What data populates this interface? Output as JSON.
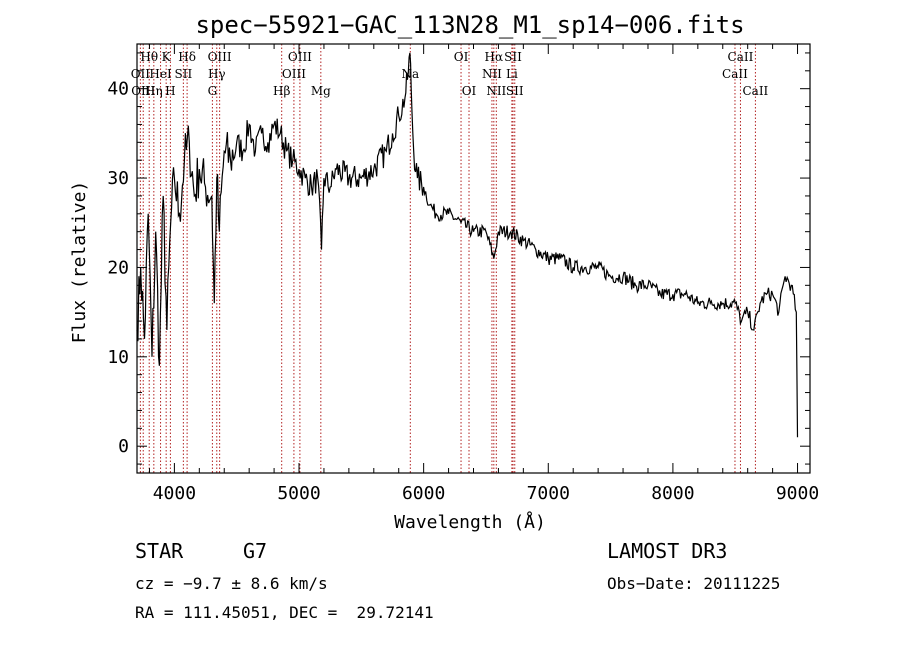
{
  "chart_data": {
    "type": "line",
    "title": "spec−55921−GAC_113N28_M1_sp14−006.fits",
    "xlabel": "Wavelength (Å)",
    "ylabel": "Flux (relative)",
    "xlim": [
      3700,
      9100
    ],
    "ylim": [
      -3,
      45
    ],
    "x_ticks": [
      4000,
      5000,
      6000,
      7000,
      8000,
      9000
    ],
    "y_ticks": [
      0,
      10,
      20,
      30,
      40
    ],
    "series": [
      {
        "name": "flux",
        "x": [
          3700,
          3730,
          3760,
          3790,
          3820,
          3850,
          3880,
          3910,
          3940,
          3970,
          4000,
          4040,
          4080,
          4120,
          4160,
          4200,
          4250,
          4300,
          4320,
          4340,
          4360,
          4400,
          4450,
          4500,
          4550,
          4600,
          4650,
          4700,
          4750,
          4800,
          4850,
          4900,
          4950,
          5000,
          5050,
          5100,
          5150,
          5180,
          5200,
          5250,
          5300,
          5400,
          5500,
          5600,
          5700,
          5750,
          5800,
          5850,
          5870,
          5890,
          5900,
          5920,
          5950,
          6000,
          6050,
          6100,
          6200,
          6300,
          6400,
          6500,
          6563,
          6600,
          6700,
          6800,
          6900,
          7000,
          7100,
          7200,
          7300,
          7400,
          7500,
          7600,
          7700,
          7800,
          7900,
          8000,
          8100,
          8200,
          8300,
          8400,
          8500,
          8550,
          8600,
          8650,
          8700,
          8750,
          8800,
          8850,
          8900,
          8950,
          8990,
          9000
        ],
        "y": [
          13,
          20,
          12,
          26,
          10,
          24,
          9,
          28,
          13,
          25,
          30,
          26,
          32,
          34,
          28,
          31,
          29,
          28,
          16,
          30,
          24,
          33,
          32,
          34,
          33,
          36,
          33,
          35,
          34,
          36,
          35,
          33,
          32,
          31,
          30,
          29,
          30,
          22,
          30,
          29,
          31,
          30,
          30,
          31,
          33,
          35,
          37,
          39,
          41,
          44,
          40,
          33,
          30,
          29,
          27,
          26,
          26,
          25,
          24,
          24,
          21,
          24,
          24,
          23,
          22,
          21,
          21,
          20,
          20,
          20,
          19,
          19,
          18,
          18,
          17,
          17,
          17,
          16,
          16,
          16,
          16,
          14,
          15,
          13,
          16,
          17,
          17,
          15,
          19,
          18,
          15,
          1
        ]
      }
    ],
    "lines": [
      {
        "label": "Hθ",
        "x": 3798,
        "row": 1
      },
      {
        "label": "K",
        "x": 3934,
        "row": 1
      },
      {
        "label": "Hδ",
        "x": 4102,
        "row": 1
      },
      {
        "label": "OIII",
        "x": 4363,
        "row": 1
      },
      {
        "label": "OIII",
        "x": 5007,
        "row": 1
      },
      {
        "label": "OI",
        "x": 6300,
        "row": 1
      },
      {
        "label": "Hα",
        "x": 6563,
        "row": 1
      },
      {
        "label": "SII",
        "x": 6717,
        "row": 1
      },
      {
        "label": "CaII",
        "x": 8542,
        "row": 1
      },
      {
        "label": "OII",
        "x": 3727,
        "row": 2
      },
      {
        "label": "HeI",
        "x": 3889,
        "row": 2
      },
      {
        "label": "SII",
        "x": 4072,
        "row": 2
      },
      {
        "label": "Hγ",
        "x": 4340,
        "row": 2
      },
      {
        "label": "OIII",
        "x": 4959,
        "row": 2
      },
      {
        "label": "Na",
        "x": 5893,
        "row": 2
      },
      {
        "label": "NII",
        "x": 6548,
        "row": 2
      },
      {
        "label": "Li",
        "x": 6708,
        "row": 2
      },
      {
        "label": "CaII",
        "x": 8498,
        "row": 2
      },
      {
        "label": "OIII",
        "x": 3750,
        "row": 3
      },
      {
        "label": "Hη",
        "x": 3835,
        "row": 3
      },
      {
        "label": "H",
        "x": 3968,
        "row": 3
      },
      {
        "label": "G",
        "x": 4305,
        "row": 3
      },
      {
        "label": "Hβ",
        "x": 4861,
        "row": 3
      },
      {
        "label": "Mg",
        "x": 5175,
        "row": 3
      },
      {
        "label": "OI",
        "x": 6364,
        "row": 3
      },
      {
        "label": "NII",
        "x": 6583,
        "row": 3
      },
      {
        "label": "SII",
        "x": 6731,
        "row": 3
      },
      {
        "label": "CaII",
        "x": 8662,
        "row": 3
      }
    ]
  },
  "info": {
    "class": "STAR",
    "subclass": "G7",
    "survey": "LAMOST DR3",
    "cz": "cz = −9.7 ± 8.6 km/s",
    "obs_date": "Obs−Date: 20111225",
    "coords": "RA = 111.45051, DEC =  29.72141"
  }
}
